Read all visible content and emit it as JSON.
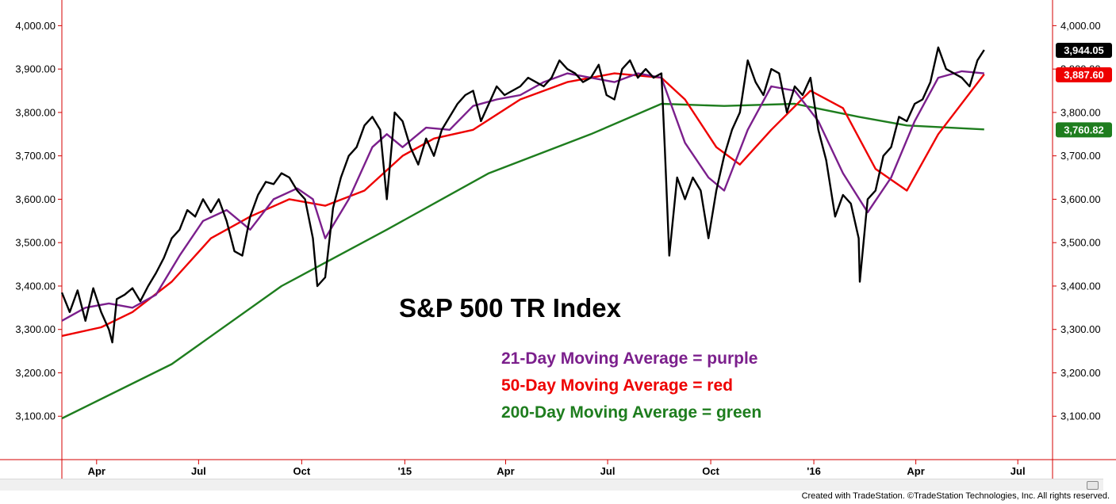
{
  "chart_data": {
    "type": "line",
    "title": "S&P 500 TR Index",
    "legend": [
      {
        "text": "21-Day Moving Average = purple",
        "color": "#7b1f8c"
      },
      {
        "text": "50-Day Moving Average = red",
        "color": "#ee0000"
      },
      {
        "text": "200-Day Moving Average = green",
        "color": "#1e7d1e"
      }
    ],
    "ylim": [
      3000,
      4050
    ],
    "y_ticks": [
      3100,
      3200,
      3300,
      3400,
      3500,
      3600,
      3700,
      3800,
      3900,
      4000
    ],
    "y_tick_labels": [
      "3,100.00",
      "3,200.00",
      "3,300.00",
      "3,400.00",
      "3,500.00",
      "3,600.00",
      "3,700.00",
      "3,800.00",
      "3,900.00",
      "4,000.00"
    ],
    "x_range": [
      "2014-03-01",
      "2016-08-01"
    ],
    "x_ticks": [
      {
        "date": "2014-04-01",
        "label": "Apr"
      },
      {
        "date": "2014-07-01",
        "label": "Jul"
      },
      {
        "date": "2014-10-01",
        "label": "Oct"
      },
      {
        "date": "2015-01-01",
        "label": "'15"
      },
      {
        "date": "2015-04-01",
        "label": "Apr"
      },
      {
        "date": "2015-07-01",
        "label": "Jul"
      },
      {
        "date": "2015-10-01",
        "label": "Oct"
      },
      {
        "date": "2016-01-01",
        "label": "'16"
      },
      {
        "date": "2016-04-01",
        "label": "Apr"
      },
      {
        "date": "2016-07-01",
        "label": "Jul"
      }
    ],
    "last_value_badges": [
      {
        "value": 3944.05,
        "label": "3,944.05",
        "color": "#000000"
      },
      {
        "value": 3887.6,
        "label": "3,887.60",
        "color": "#ee0000"
      },
      {
        "value": 3760.82,
        "label": "3,760.82",
        "color": "#1e7d1e"
      }
    ],
    "series": [
      {
        "name": "S&P 500 TR Index",
        "color": "#000000",
        "points": [
          [
            "2014-03-01",
            3385
          ],
          [
            "2014-03-08",
            3340
          ],
          [
            "2014-03-15",
            3390
          ],
          [
            "2014-03-22",
            3320
          ],
          [
            "2014-03-29",
            3395
          ],
          [
            "2014-04-05",
            3340
          ],
          [
            "2014-04-12",
            3300
          ],
          [
            "2014-04-15",
            3270
          ],
          [
            "2014-04-19",
            3370
          ],
          [
            "2014-04-26",
            3380
          ],
          [
            "2014-05-03",
            3395
          ],
          [
            "2014-05-10",
            3365
          ],
          [
            "2014-05-17",
            3400
          ],
          [
            "2014-05-24",
            3430
          ],
          [
            "2014-05-31",
            3465
          ],
          [
            "2014-06-07",
            3510
          ],
          [
            "2014-06-14",
            3530
          ],
          [
            "2014-06-21",
            3575
          ],
          [
            "2014-06-28",
            3560
          ],
          [
            "2014-07-05",
            3600
          ],
          [
            "2014-07-12",
            3570
          ],
          [
            "2014-07-19",
            3600
          ],
          [
            "2014-07-26",
            3550
          ],
          [
            "2014-08-02",
            3480
          ],
          [
            "2014-08-09",
            3470
          ],
          [
            "2014-08-16",
            3560
          ],
          [
            "2014-08-23",
            3610
          ],
          [
            "2014-08-30",
            3640
          ],
          [
            "2014-09-06",
            3635
          ],
          [
            "2014-09-13",
            3660
          ],
          [
            "2014-09-20",
            3650
          ],
          [
            "2014-09-27",
            3620
          ],
          [
            "2014-10-04",
            3600
          ],
          [
            "2014-10-11",
            3510
          ],
          [
            "2014-10-15",
            3400
          ],
          [
            "2014-10-22",
            3420
          ],
          [
            "2014-10-29",
            3580
          ],
          [
            "2014-11-05",
            3650
          ],
          [
            "2014-11-12",
            3700
          ],
          [
            "2014-11-19",
            3720
          ],
          [
            "2014-11-26",
            3770
          ],
          [
            "2014-12-03",
            3790
          ],
          [
            "2014-12-10",
            3760
          ],
          [
            "2014-12-16",
            3600
          ],
          [
            "2014-12-23",
            3800
          ],
          [
            "2014-12-30",
            3780
          ],
          [
            "2015-01-06",
            3720
          ],
          [
            "2015-01-13",
            3680
          ],
          [
            "2015-01-20",
            3740
          ],
          [
            "2015-01-27",
            3700
          ],
          [
            "2015-02-03",
            3760
          ],
          [
            "2015-02-10",
            3790
          ],
          [
            "2015-02-17",
            3820
          ],
          [
            "2015-02-24",
            3840
          ],
          [
            "2015-03-03",
            3850
          ],
          [
            "2015-03-10",
            3780
          ],
          [
            "2015-03-17",
            3820
          ],
          [
            "2015-03-24",
            3860
          ],
          [
            "2015-03-31",
            3840
          ],
          [
            "2015-04-07",
            3850
          ],
          [
            "2015-04-14",
            3860
          ],
          [
            "2015-04-21",
            3880
          ],
          [
            "2015-04-28",
            3870
          ],
          [
            "2015-05-05",
            3860
          ],
          [
            "2015-05-12",
            3880
          ],
          [
            "2015-05-19",
            3920
          ],
          [
            "2015-05-26",
            3900
          ],
          [
            "2015-06-02",
            3890
          ],
          [
            "2015-06-09",
            3870
          ],
          [
            "2015-06-16",
            3880
          ],
          [
            "2015-06-23",
            3910
          ],
          [
            "2015-06-30",
            3840
          ],
          [
            "2015-07-07",
            3830
          ],
          [
            "2015-07-14",
            3900
          ],
          [
            "2015-07-21",
            3920
          ],
          [
            "2015-07-28",
            3880
          ],
          [
            "2015-08-04",
            3900
          ],
          [
            "2015-08-11",
            3880
          ],
          [
            "2015-08-18",
            3890
          ],
          [
            "2015-08-21",
            3720
          ],
          [
            "2015-08-25",
            3470
          ],
          [
            "2015-09-01",
            3650
          ],
          [
            "2015-09-08",
            3600
          ],
          [
            "2015-09-15",
            3650
          ],
          [
            "2015-09-22",
            3620
          ],
          [
            "2015-09-29",
            3510
          ],
          [
            "2015-10-06",
            3620
          ],
          [
            "2015-10-13",
            3700
          ],
          [
            "2015-10-20",
            3760
          ],
          [
            "2015-10-27",
            3800
          ],
          [
            "2015-11-03",
            3920
          ],
          [
            "2015-11-10",
            3870
          ],
          [
            "2015-11-17",
            3840
          ],
          [
            "2015-11-24",
            3900
          ],
          [
            "2015-12-01",
            3890
          ],
          [
            "2015-12-08",
            3800
          ],
          [
            "2015-12-15",
            3860
          ],
          [
            "2015-12-22",
            3840
          ],
          [
            "2015-12-29",
            3880
          ],
          [
            "2016-01-05",
            3760
          ],
          [
            "2016-01-12",
            3690
          ],
          [
            "2016-01-20",
            3560
          ],
          [
            "2016-01-27",
            3610
          ],
          [
            "2016-02-03",
            3590
          ],
          [
            "2016-02-10",
            3510
          ],
          [
            "2016-02-11",
            3410
          ],
          [
            "2016-02-18",
            3600
          ],
          [
            "2016-02-25",
            3620
          ],
          [
            "2016-03-03",
            3700
          ],
          [
            "2016-03-10",
            3720
          ],
          [
            "2016-03-17",
            3790
          ],
          [
            "2016-03-24",
            3780
          ],
          [
            "2016-03-31",
            3820
          ],
          [
            "2016-04-07",
            3830
          ],
          [
            "2016-04-14",
            3870
          ],
          [
            "2016-04-21",
            3950
          ],
          [
            "2016-04-28",
            3900
          ],
          [
            "2016-05-05",
            3890
          ],
          [
            "2016-05-12",
            3880
          ],
          [
            "2016-05-19",
            3860
          ],
          [
            "2016-05-26",
            3920
          ],
          [
            "2016-06-01",
            3944
          ]
        ]
      },
      {
        "name": "21-Day Moving Average",
        "color": "#7b1f8c",
        "points": [
          [
            "2014-03-01",
            3320
          ],
          [
            "2014-03-22",
            3350
          ],
          [
            "2014-04-12",
            3360
          ],
          [
            "2014-05-03",
            3350
          ],
          [
            "2014-05-24",
            3380
          ],
          [
            "2014-06-14",
            3470
          ],
          [
            "2014-07-05",
            3550
          ],
          [
            "2014-07-26",
            3575
          ],
          [
            "2014-08-16",
            3530
          ],
          [
            "2014-09-06",
            3600
          ],
          [
            "2014-09-27",
            3625
          ],
          [
            "2014-10-11",
            3600
          ],
          [
            "2014-10-22",
            3510
          ],
          [
            "2014-11-12",
            3600
          ],
          [
            "2014-12-03",
            3720
          ],
          [
            "2014-12-16",
            3750
          ],
          [
            "2014-12-30",
            3720
          ],
          [
            "2015-01-20",
            3765
          ],
          [
            "2015-02-10",
            3760
          ],
          [
            "2015-03-03",
            3815
          ],
          [
            "2015-03-24",
            3830
          ],
          [
            "2015-04-14",
            3840
          ],
          [
            "2015-05-05",
            3870
          ],
          [
            "2015-05-26",
            3890
          ],
          [
            "2015-06-16",
            3880
          ],
          [
            "2015-07-07",
            3870
          ],
          [
            "2015-07-28",
            3890
          ],
          [
            "2015-08-18",
            3880
          ],
          [
            "2015-09-08",
            3730
          ],
          [
            "2015-09-29",
            3650
          ],
          [
            "2015-10-13",
            3620
          ],
          [
            "2015-11-03",
            3760
          ],
          [
            "2015-11-24",
            3860
          ],
          [
            "2015-12-15",
            3850
          ],
          [
            "2016-01-05",
            3780
          ],
          [
            "2016-01-27",
            3660
          ],
          [
            "2016-02-18",
            3570
          ],
          [
            "2016-03-10",
            3650
          ],
          [
            "2016-03-31",
            3780
          ],
          [
            "2016-04-21",
            3880
          ],
          [
            "2016-05-12",
            3895
          ],
          [
            "2016-06-01",
            3890
          ]
        ]
      },
      {
        "name": "50-Day Moving Average",
        "color": "#ee0000",
        "points": [
          [
            "2014-03-01",
            3285
          ],
          [
            "2014-04-05",
            3305
          ],
          [
            "2014-05-03",
            3340
          ],
          [
            "2014-06-07",
            3410
          ],
          [
            "2014-07-12",
            3510
          ],
          [
            "2014-08-16",
            3560
          ],
          [
            "2014-09-20",
            3600
          ],
          [
            "2014-10-22",
            3585
          ],
          [
            "2014-11-26",
            3620
          ],
          [
            "2014-12-30",
            3700
          ],
          [
            "2015-01-27",
            3740
          ],
          [
            "2015-03-03",
            3760
          ],
          [
            "2015-04-14",
            3830
          ],
          [
            "2015-05-26",
            3870
          ],
          [
            "2015-07-07",
            3890
          ],
          [
            "2015-08-18",
            3880
          ],
          [
            "2015-09-08",
            3830
          ],
          [
            "2015-10-06",
            3720
          ],
          [
            "2015-10-27",
            3680
          ],
          [
            "2015-11-24",
            3760
          ],
          [
            "2015-12-29",
            3850
          ],
          [
            "2016-01-27",
            3810
          ],
          [
            "2016-02-25",
            3670
          ],
          [
            "2016-03-24",
            3620
          ],
          [
            "2016-04-21",
            3750
          ],
          [
            "2016-06-01",
            3888
          ]
        ]
      },
      {
        "name": "200-Day Moving Average",
        "color": "#1e7d1e",
        "points": [
          [
            "2014-03-01",
            3095
          ],
          [
            "2014-06-07",
            3220
          ],
          [
            "2014-09-13",
            3400
          ],
          [
            "2014-12-16",
            3530
          ],
          [
            "2015-03-17",
            3660
          ],
          [
            "2015-06-16",
            3750
          ],
          [
            "2015-08-18",
            3820
          ],
          [
            "2015-10-13",
            3815
          ],
          [
            "2015-12-15",
            3820
          ],
          [
            "2016-02-10",
            3790
          ],
          [
            "2016-03-24",
            3770
          ],
          [
            "2016-06-01",
            3761
          ]
        ]
      }
    ]
  },
  "footer": "Created with TradeStation. ©TradeStation Technologies, Inc. All rights reserved."
}
